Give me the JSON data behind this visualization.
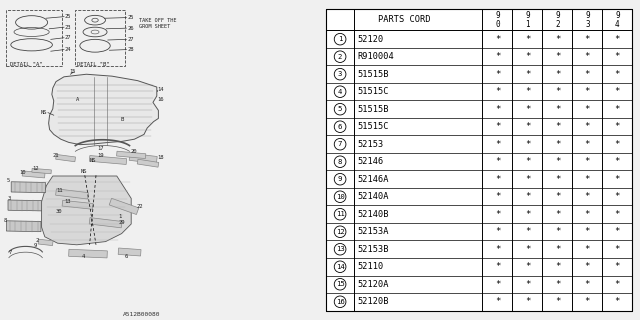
{
  "parts": [
    [
      "1",
      "52120"
    ],
    [
      "2",
      "R910004"
    ],
    [
      "3",
      "51515B"
    ],
    [
      "4",
      "51515C"
    ],
    [
      "5",
      "51515B"
    ],
    [
      "6",
      "51515C"
    ],
    [
      "7",
      "52153"
    ],
    [
      "8",
      "52146"
    ],
    [
      "9",
      "52146A"
    ],
    [
      "10",
      "52140A"
    ],
    [
      "11",
      "52140B"
    ],
    [
      "12",
      "52153A"
    ],
    [
      "13",
      "52153B"
    ],
    [
      "14",
      "52110"
    ],
    [
      "15",
      "52120A"
    ],
    [
      "16",
      "52120B"
    ]
  ],
  "year_headers": [
    "9\n0",
    "9\n1",
    "9\n2",
    "9\n3",
    "9\n4"
  ],
  "num_star_cols": 5,
  "catalog_num": "A512B00080",
  "bg_color": "#f0f0f0"
}
